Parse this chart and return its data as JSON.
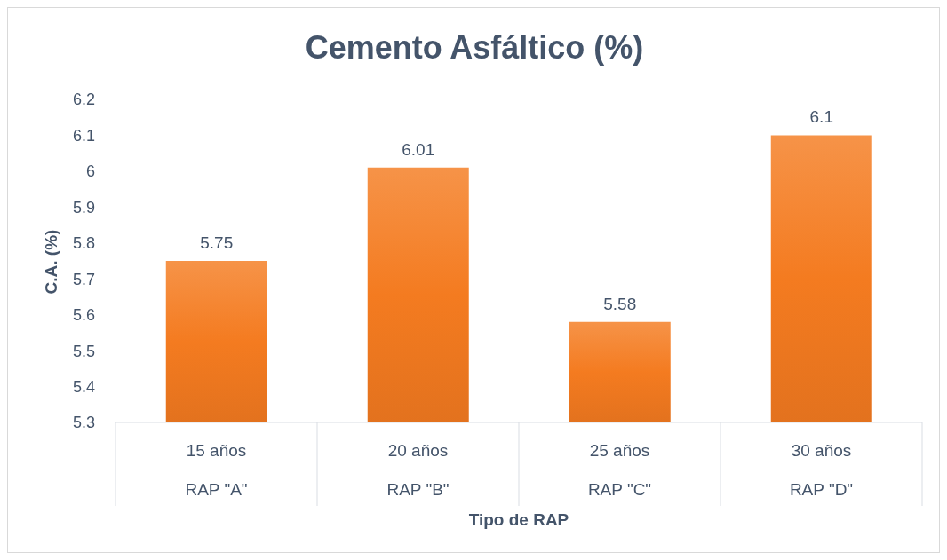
{
  "chart_data": {
    "type": "bar",
    "title": "Cemento Asfáltico (%)",
    "xlabel": "Tipo de RAP",
    "ylabel": "C.A. (%)",
    "categories": [
      "15 años\nRAP \"A\"",
      "20 años\nRAP \"B\"",
      "25 años\nRAP \"C\"",
      "30 años\nRAP \"D\""
    ],
    "values": [
      5.75,
      6.01,
      5.58,
      6.1
    ],
    "color": "#f47b20",
    "ylim": [
      5.3,
      6.2
    ],
    "yticks": [
      5.3,
      5.4,
      5.5,
      5.6,
      5.7,
      5.8,
      5.9,
      6,
      6.1,
      6.2
    ],
    "data_labels": true
  }
}
